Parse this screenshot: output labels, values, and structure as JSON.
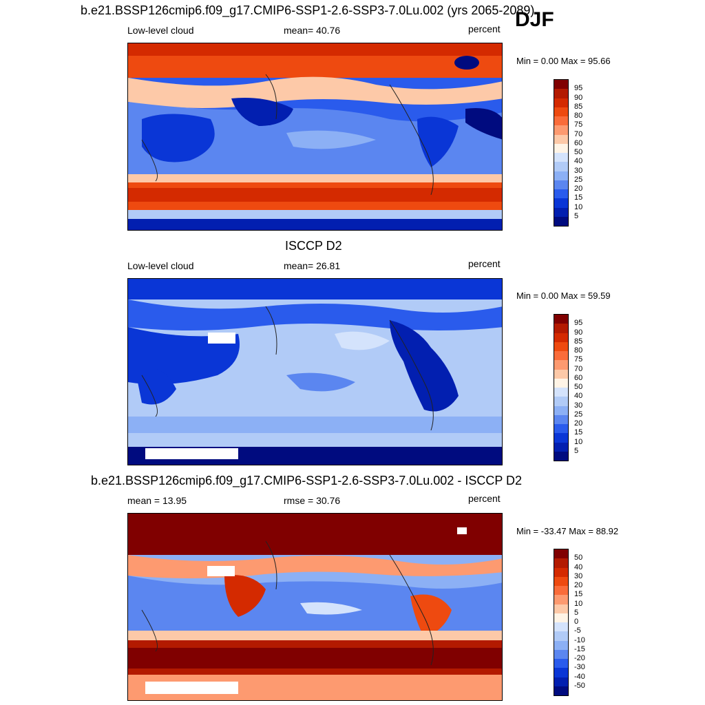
{
  "season": "DJF",
  "panels": [
    {
      "title": "b.e21.BSSP126cmip6.f09_g17.CMIP6-SSP1-2.6-SSP3-7.0Lu.002 (yrs 2065-2089)",
      "left_label": "Low-level cloud",
      "center_label": "mean=  40.76",
      "units": "percent",
      "minmax": "Min =   0.00 Max =  95.66",
      "colorbar": {
        "labels": [
          "95",
          "90",
          "85",
          "80",
          "75",
          "70",
          "60",
          "50",
          "40",
          "30",
          "25",
          "20",
          "15",
          "10",
          "5"
        ],
        "colors": [
          "#800000",
          "#b31a00",
          "#d42a00",
          "#ee4a10",
          "#fa6c3a",
          "#fd9a70",
          "#fdc9a8",
          "#fff4e6",
          "#d4e3fc",
          "#b1cbf7",
          "#8cb0f5",
          "#5b86f0",
          "#2a5bec",
          "#0a36d6",
          "#021fb0",
          "#000b7f"
        ]
      }
    },
    {
      "title": "ISCCP D2",
      "left_label": "Low-level cloud",
      "center_label": "mean=  26.81",
      "units": "percent",
      "minmax": "Min =   0.00 Max =  59.59",
      "colorbar": {
        "labels": [
          "95",
          "90",
          "85",
          "80",
          "75",
          "70",
          "60",
          "50",
          "40",
          "30",
          "25",
          "20",
          "15",
          "10",
          "5"
        ],
        "colors": [
          "#800000",
          "#b31a00",
          "#d42a00",
          "#ee4a10",
          "#fa6c3a",
          "#fd9a70",
          "#fdc9a8",
          "#fff4e6",
          "#d4e3fc",
          "#b1cbf7",
          "#8cb0f5",
          "#5b86f0",
          "#2a5bec",
          "#0a36d6",
          "#021fb0",
          "#000b7f"
        ]
      }
    },
    {
      "title": "b.e21.BSSP126cmip6.f09_g17.CMIP6-SSP1-2.6-SSP3-7.0Lu.002 - ISCCP D2",
      "left_label": "mean =  13.95",
      "center_label": "rmse =  30.76",
      "units": "percent",
      "minmax": "Min = -33.47 Max =  88.92",
      "colorbar": {
        "labels": [
          "50",
          "40",
          "30",
          "20",
          "15",
          "10",
          "5",
          "0",
          "-5",
          "-10",
          "-15",
          "-20",
          "-30",
          "-40",
          "-50"
        ],
        "colors": [
          "#800000",
          "#b31a00",
          "#d42a00",
          "#ee4a10",
          "#fa6c3a",
          "#fd9a70",
          "#fdc9a8",
          "#fff4e6",
          "#d4e3fc",
          "#b1cbf7",
          "#8cb0f5",
          "#5b86f0",
          "#2a5bec",
          "#0a36d6",
          "#021fb0",
          "#000b7f"
        ]
      }
    }
  ]
}
